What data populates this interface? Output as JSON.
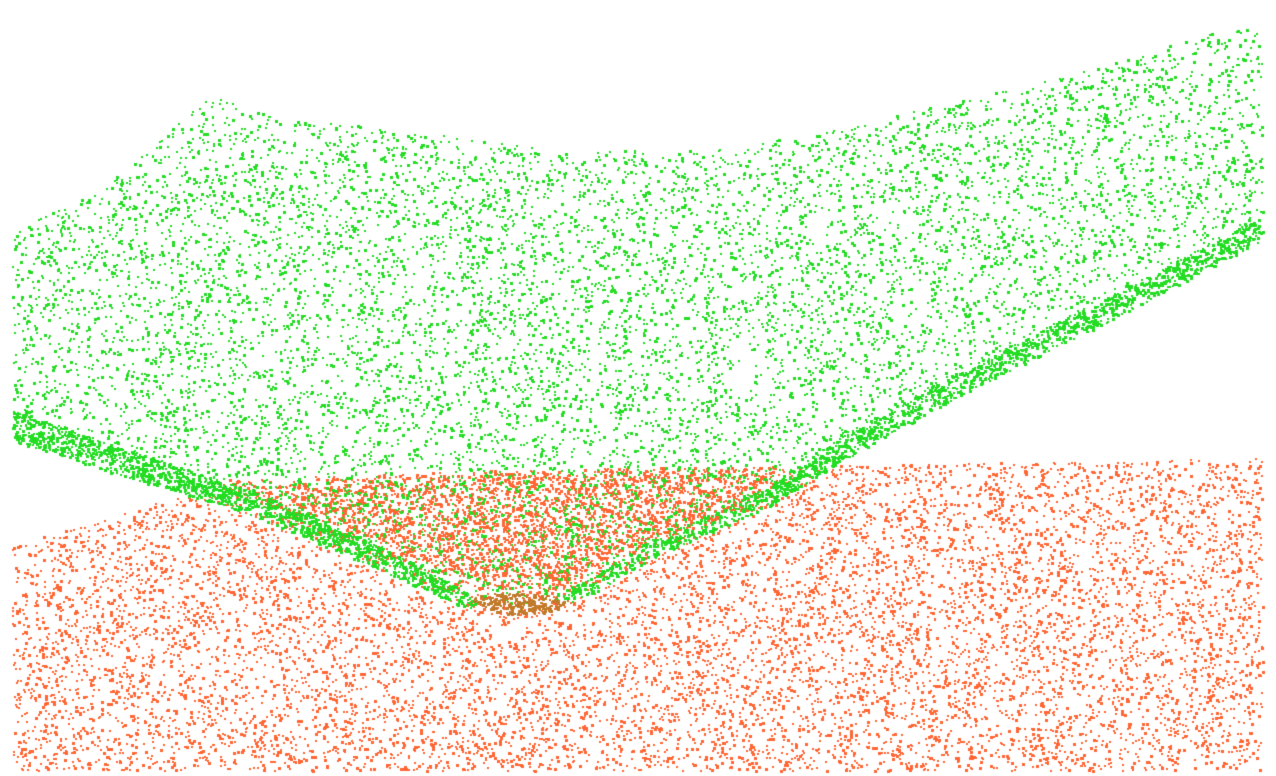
{
  "scene": {
    "background_color": "#ffffff",
    "point_clouds": [
      {
        "name": "green-cloud",
        "color": "#22dd22",
        "shape": "bent-surface-with-crease"
      },
      {
        "name": "orange-cloud",
        "color": "#ff6633",
        "shape": "flat-ground-plane"
      }
    ],
    "contact_color": "#c07a2a"
  }
}
